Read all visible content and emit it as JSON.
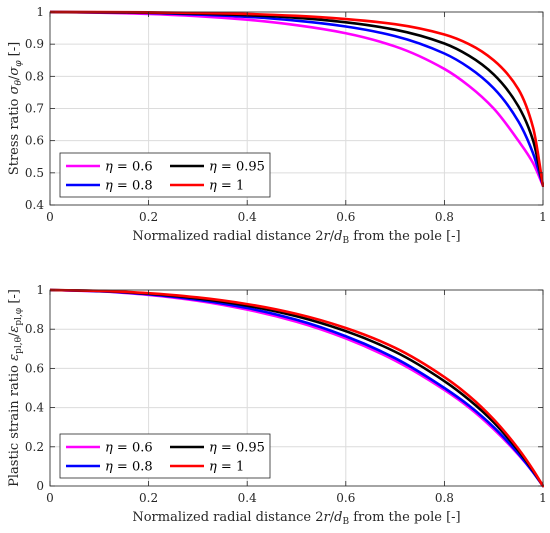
{
  "chart_data": [
    {
      "type": "line",
      "xlabel": "Normalized radial distance 2r/d_B from the pole [-]",
      "ylabel": "Stress ratio σ_θ/σ_φ [-]",
      "xlim": [
        0,
        1
      ],
      "ylim": [
        0.4,
        1.0
      ],
      "xticks": [
        0,
        0.2,
        0.4,
        0.6,
        0.8,
        1
      ],
      "yticks": [
        0.4,
        0.5,
        0.6,
        0.7,
        0.8,
        0.9,
        1
      ],
      "xtick_labels": [
        "0",
        "0.2",
        "0.4",
        "0.6",
        "0.8",
        "1"
      ],
      "ytick_labels": [
        "0.4",
        "0.5",
        "0.6",
        "0.7",
        "0.8",
        "0.9",
        "1"
      ],
      "grid": true,
      "legend_position": "bottom-left",
      "series": [
        {
          "name": "η = 0.6",
          "color": "#ff00ff",
          "x": [
            0,
            0.1,
            0.2,
            0.3,
            0.4,
            0.5,
            0.6,
            0.7,
            0.8,
            0.85,
            0.9,
            0.95,
            0.98,
            1.0
          ],
          "y": [
            1.0,
            0.998,
            0.994,
            0.987,
            0.976,
            0.959,
            0.934,
            0.893,
            0.823,
            0.77,
            0.7,
            0.6,
            0.53,
            0.46
          ]
        },
        {
          "name": "η = 0.8",
          "color": "#0000ff",
          "x": [
            0,
            0.1,
            0.2,
            0.3,
            0.4,
            0.5,
            0.6,
            0.7,
            0.8,
            0.85,
            0.9,
            0.95,
            0.98,
            1.0
          ],
          "y": [
            1.0,
            0.999,
            0.997,
            0.992,
            0.985,
            0.973,
            0.955,
            0.925,
            0.871,
            0.827,
            0.763,
            0.66,
            0.56,
            0.46
          ]
        },
        {
          "name": "η = 0.95",
          "color": "#000000",
          "x": [
            0,
            0.1,
            0.2,
            0.3,
            0.4,
            0.5,
            0.6,
            0.7,
            0.8,
            0.85,
            0.9,
            0.95,
            0.98,
            1.0
          ],
          "y": [
            1.0,
            0.999,
            0.998,
            0.995,
            0.99,
            0.982,
            0.968,
            0.945,
            0.902,
            0.864,
            0.806,
            0.707,
            0.6,
            0.46
          ]
        },
        {
          "name": "η = 1",
          "color": "#ff0000",
          "x": [
            0,
            0.1,
            0.2,
            0.3,
            0.4,
            0.5,
            0.6,
            0.7,
            0.8,
            0.85,
            0.9,
            0.95,
            0.98,
            1.0
          ],
          "y": [
            1.0,
            1.0,
            0.999,
            0.997,
            0.994,
            0.988,
            0.978,
            0.962,
            0.93,
            0.9,
            0.85,
            0.76,
            0.64,
            0.46
          ]
        }
      ]
    },
    {
      "type": "line",
      "xlabel": "Normalized radial distance 2r/d_B from the pole [-]",
      "ylabel": "Plastic strain ratio ε_pl,θ/ε_pl,φ [-]",
      "xlim": [
        0,
        1
      ],
      "ylim": [
        0,
        1.0
      ],
      "xticks": [
        0,
        0.2,
        0.4,
        0.6,
        0.8,
        1
      ],
      "yticks": [
        0,
        0.2,
        0.4,
        0.6,
        0.8,
        1
      ],
      "xtick_labels": [
        "0",
        "0.2",
        "0.4",
        "0.6",
        "0.8",
        "1"
      ],
      "ytick_labels": [
        "0",
        "0.2",
        "0.4",
        "0.6",
        "0.8",
        "1"
      ],
      "grid": true,
      "legend_position": "bottom-left",
      "series": [
        {
          "name": "η = 0.6",
          "color": "#ff00ff",
          "x": [
            0,
            0.1,
            0.2,
            0.3,
            0.4,
            0.5,
            0.6,
            0.7,
            0.8,
            0.85,
            0.9,
            0.95,
            0.98,
            1.0
          ],
          "y": [
            1.0,
            0.993,
            0.975,
            0.945,
            0.9,
            0.838,
            0.753,
            0.64,
            0.49,
            0.4,
            0.29,
            0.16,
            0.07,
            0.0
          ]
        },
        {
          "name": "η = 0.8",
          "color": "#0000ff",
          "x": [
            0,
            0.1,
            0.2,
            0.3,
            0.4,
            0.5,
            0.6,
            0.7,
            0.8,
            0.85,
            0.9,
            0.95,
            0.98,
            1.0
          ],
          "y": [
            1.0,
            0.994,
            0.978,
            0.95,
            0.908,
            0.848,
            0.764,
            0.652,
            0.5,
            0.41,
            0.3,
            0.165,
            0.07,
            0.0
          ]
        },
        {
          "name": "η = 0.95",
          "color": "#000000",
          "x": [
            0,
            0.1,
            0.2,
            0.3,
            0.4,
            0.5,
            0.6,
            0.7,
            0.8,
            0.85,
            0.9,
            0.95,
            0.98,
            1.0
          ],
          "y": [
            1.0,
            0.995,
            0.981,
            0.957,
            0.92,
            0.866,
            0.79,
            0.685,
            0.535,
            0.44,
            0.325,
            0.18,
            0.078,
            0.0
          ]
        },
        {
          "name": "η = 1",
          "color": "#ff0000",
          "x": [
            0,
            0.1,
            0.2,
            0.3,
            0.4,
            0.5,
            0.6,
            0.7,
            0.8,
            0.85,
            0.9,
            0.95,
            0.98,
            1.0
          ],
          "y": [
            1.0,
            0.996,
            0.984,
            0.962,
            0.928,
            0.878,
            0.806,
            0.705,
            0.556,
            0.46,
            0.34,
            0.19,
            0.082,
            0.0
          ]
        }
      ]
    }
  ]
}
